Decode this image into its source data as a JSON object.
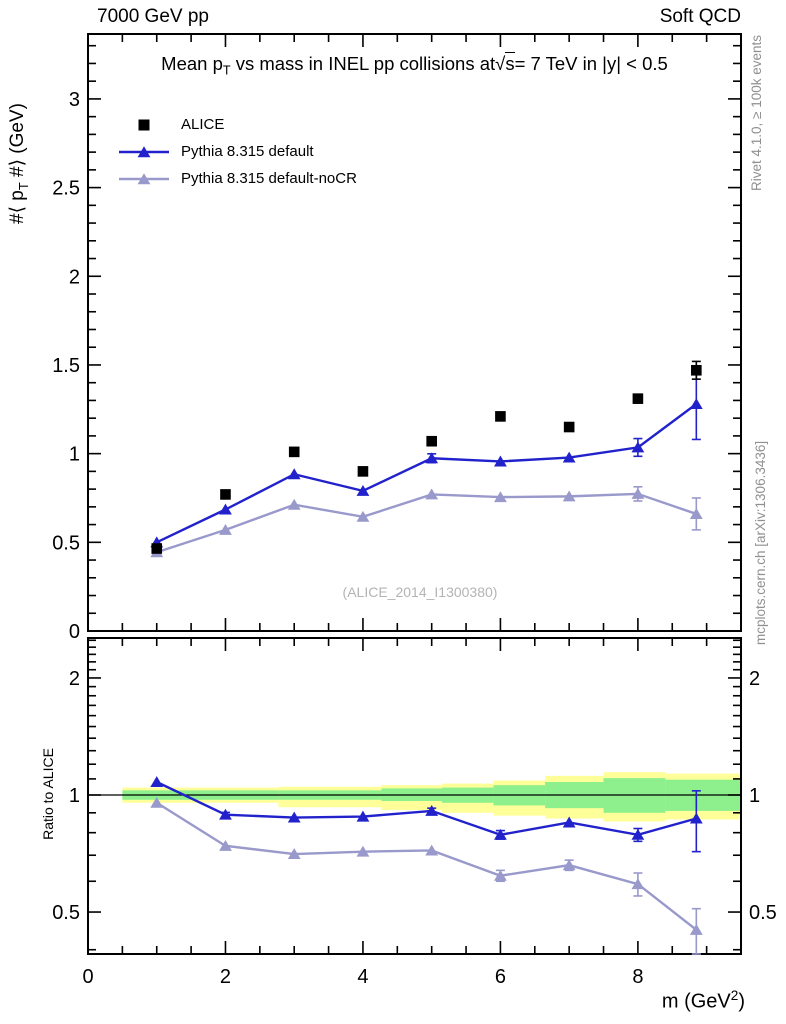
{
  "header": {
    "left": "7000 GeV pp",
    "right": "Soft QCD"
  },
  "title": {
    "pre": "Mean p",
    "sub": "T",
    "mid": " vs mass in INEL pp collisions at",
    "sqrt": "√",
    "sbar": "s",
    "post": "=  7 TeV in |y| < 0.5"
  },
  "axis_titles": {
    "y_main_pre": "#⟨ p",
    "y_main_sub": "T",
    "y_main_post": " #⟩ (GeV)",
    "y_ratio": "Ratio to ALICE",
    "x_pre": "m (GeV",
    "x_sup": "2",
    "x_post": ")"
  },
  "side_texts": {
    "top": "Rivet 4.1.0, ≥ 100k events",
    "bottom": "mcplots.cern.ch [arXiv:1306.3436]"
  },
  "watermark": "(ALICE_2014_I1300380)",
  "colors": {
    "alice": "#000000",
    "pythia_default": "#2222cc",
    "pythia_nocr": "#9999cc",
    "band_yellow": "#ffff99",
    "band_green": "#8df08d",
    "frame": "#000000",
    "side_text": "#909090",
    "watermark": "#b4b4b4"
  },
  "chart_data": [
    {
      "type": "line",
      "panel": "main",
      "title": "Mean pT vs mass in INEL pp collisions at sqrt(s)= 7 TeV in |y| < 0.5",
      "xlabel": "m (GeV^2)",
      "ylabel": "<pT> (GeV)",
      "xlim": [
        0,
        9.5
      ],
      "ylim": [
        0,
        3.366
      ],
      "x": [
        1,
        2,
        3,
        4,
        5,
        6,
        7,
        8,
        8.85
      ],
      "series": [
        {
          "name": "ALICE",
          "marker": "square",
          "line": false,
          "color_key": "alice",
          "y": [
            0.465,
            0.77,
            1.01,
            0.9,
            1.07,
            1.21,
            1.15,
            1.31,
            1.47
          ],
          "yerr": [
            0,
            0,
            0,
            0,
            0,
            0,
            0,
            0,
            0.05
          ]
        },
        {
          "name": "Pythia 8.315 default",
          "marker": "triangle",
          "line": true,
          "color_key": "pythia_default",
          "y": [
            0.5,
            0.685,
            0.884,
            0.79,
            0.974,
            0.956,
            0.978,
            1.035,
            1.28
          ],
          "yerr": [
            0,
            0,
            0,
            0,
            0.025,
            0,
            0,
            0.05,
            0.2
          ]
        },
        {
          "name": "Pythia 8.315 default-noCR",
          "marker": "triangle",
          "line": true,
          "color_key": "pythia_nocr",
          "y": [
            0.444,
            0.57,
            0.712,
            0.644,
            0.77,
            0.755,
            0.759,
            0.773,
            0.66
          ],
          "yerr": [
            0,
            0,
            0,
            0,
            0,
            0,
            0,
            0.04,
            0.09
          ]
        }
      ],
      "yticks": {
        "major": [
          0,
          0.5,
          1,
          1.5,
          2,
          2.5,
          3
        ],
        "labels": [
          "0",
          "0.5",
          "1",
          "1.5",
          "2",
          "2.5",
          "3"
        ],
        "minor_step": 0.1
      },
      "xticks": {
        "major": [
          0,
          2,
          4,
          6,
          8
        ],
        "labels": [
          "0",
          "2",
          "4",
          "6",
          "8"
        ],
        "minor_step": 0.5
      }
    },
    {
      "type": "line",
      "panel": "ratio",
      "ylabel": "Ratio to ALICE",
      "xlim": [
        0,
        9.5
      ],
      "ylog": true,
      "ylim": [
        0.39,
        2.53
      ],
      "reference_line": 1,
      "x": [
        1,
        2,
        3,
        4,
        5,
        6,
        7,
        8,
        8.85
      ],
      "bands": [
        {
          "x0": 0.5,
          "x1": 2.77,
          "yellow": [
            0.955,
            1.045
          ],
          "green": [
            0.972,
            1.028
          ]
        },
        {
          "x0": 2.77,
          "x1": 4.27,
          "yellow": [
            0.93,
            1.05
          ],
          "green": [
            0.972,
            1.028
          ]
        },
        {
          "x0": 4.27,
          "x1": 5.15,
          "yellow": [
            0.915,
            1.06
          ],
          "green": [
            0.965,
            1.04
          ]
        },
        {
          "x0": 5.15,
          "x1": 5.9,
          "yellow": [
            0.9,
            1.07
          ],
          "green": [
            0.955,
            1.045
          ]
        },
        {
          "x0": 5.9,
          "x1": 6.65,
          "yellow": [
            0.885,
            1.09
          ],
          "green": [
            0.94,
            1.06
          ]
        },
        {
          "x0": 6.65,
          "x1": 7.5,
          "yellow": [
            0.87,
            1.12
          ],
          "green": [
            0.925,
            1.08
          ]
        },
        {
          "x0": 7.5,
          "x1": 8.4,
          "yellow": [
            0.855,
            1.145
          ],
          "green": [
            0.9,
            1.105
          ]
        },
        {
          "x0": 8.4,
          "x1": 9.5,
          "yellow": [
            0.865,
            1.135
          ],
          "green": [
            0.91,
            1.095
          ]
        }
      ],
      "series": [
        {
          "name": "Pythia 8.315 default",
          "marker": "triangle",
          "line": true,
          "color_key": "pythia_default",
          "y": [
            1.08,
            0.89,
            0.875,
            0.88,
            0.91,
            0.79,
            0.85,
            0.79,
            0.87
          ],
          "yerr": [
            0,
            0.012,
            0,
            0,
            0.015,
            0.02,
            0,
            0.03,
            0.155
          ]
        },
        {
          "name": "Pythia 8.315 default-noCR",
          "marker": "triangle",
          "line": true,
          "color_key": "pythia_nocr",
          "y": [
            0.955,
            0.74,
            0.705,
            0.715,
            0.72,
            0.62,
            0.66,
            0.59,
            0.45
          ],
          "yerr": [
            0,
            0,
            0,
            0,
            0,
            0.02,
            0.02,
            0.04,
            0.06
          ]
        }
      ],
      "yticks": {
        "major": [
          0.5,
          1,
          2
        ],
        "labels": [
          "0.5",
          "1",
          "2"
        ],
        "minor": [
          0.4,
          0.6,
          0.7,
          0.8,
          0.9,
          1.1,
          1.2,
          1.3,
          1.4,
          1.5,
          1.6,
          1.7,
          1.8,
          1.9,
          2.1,
          2.2,
          2.3,
          2.4,
          2.5
        ]
      },
      "xticks": {
        "major": [
          0,
          2,
          4,
          6,
          8
        ],
        "labels": [
          "0",
          "2",
          "4",
          "6",
          "8"
        ],
        "minor_step": 0.5
      }
    }
  ]
}
